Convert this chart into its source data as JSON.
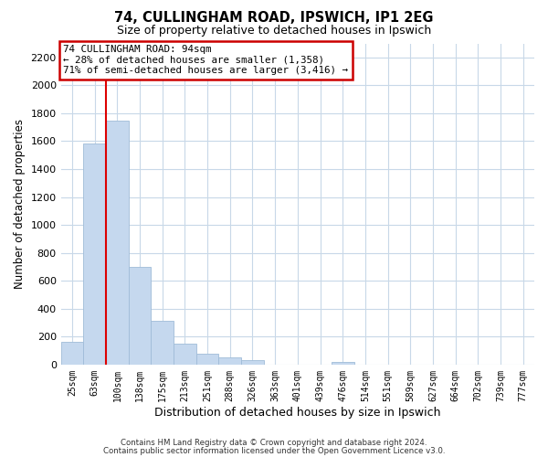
{
  "title": "74, CULLINGHAM ROAD, IPSWICH, IP1 2EG",
  "subtitle": "Size of property relative to detached houses in Ipswich",
  "xlabel": "Distribution of detached houses by size in Ipswich",
  "ylabel": "Number of detached properties",
  "bar_labels": [
    "25sqm",
    "63sqm",
    "100sqm",
    "138sqm",
    "175sqm",
    "213sqm",
    "251sqm",
    "288sqm",
    "326sqm",
    "363sqm",
    "401sqm",
    "439sqm",
    "476sqm",
    "514sqm",
    "551sqm",
    "589sqm",
    "627sqm",
    "664sqm",
    "702sqm",
    "739sqm",
    "777sqm"
  ],
  "bar_values": [
    160,
    1580,
    1750,
    700,
    315,
    150,
    80,
    50,
    30,
    0,
    0,
    0,
    20,
    0,
    0,
    0,
    0,
    0,
    0,
    0,
    0
  ],
  "bar_color": "#c5d8ee",
  "bar_edge_color": "#a0bcd8",
  "highlight_bar_index": 2,
  "vline_color": "#dd0000",
  "ylim": [
    0,
    2300
  ],
  "yticks": [
    0,
    200,
    400,
    600,
    800,
    1000,
    1200,
    1400,
    1600,
    1800,
    2000,
    2200
  ],
  "annotation_title": "74 CULLINGHAM ROAD: 94sqm",
  "annotation_line1": "← 28% of detached houses are smaller (1,358)",
  "annotation_line2": "71% of semi-detached houses are larger (3,416) →",
  "footer1": "Contains HM Land Registry data © Crown copyright and database right 2024.",
  "footer2": "Contains public sector information licensed under the Open Government Licence v3.0.",
  "background_color": "#ffffff",
  "grid_color": "#c8d8e8"
}
